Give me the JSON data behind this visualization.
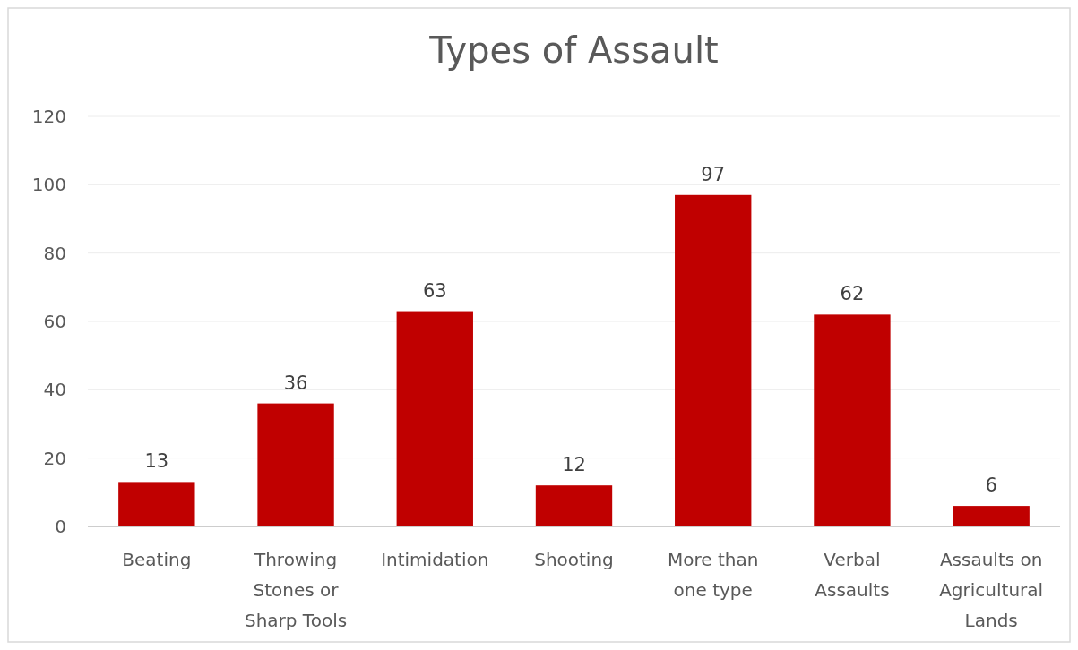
{
  "chart_data": {
    "type": "bar",
    "title": "Types of Assault",
    "categories": [
      "Beating",
      "Throwing Stones or Sharp Tools",
      "Intimidation",
      "Shooting",
      "More than one type",
      "Verbal Assaults",
      "Assaults on Agricultural Lands"
    ],
    "values": [
      13,
      36,
      63,
      12,
      97,
      62,
      6
    ],
    "color": "#c00000",
    "ylim": [
      0,
      120
    ],
    "yticks": [
      0,
      20,
      40,
      60,
      80,
      100,
      120
    ],
    "grid": "y",
    "data_labels": true
  }
}
